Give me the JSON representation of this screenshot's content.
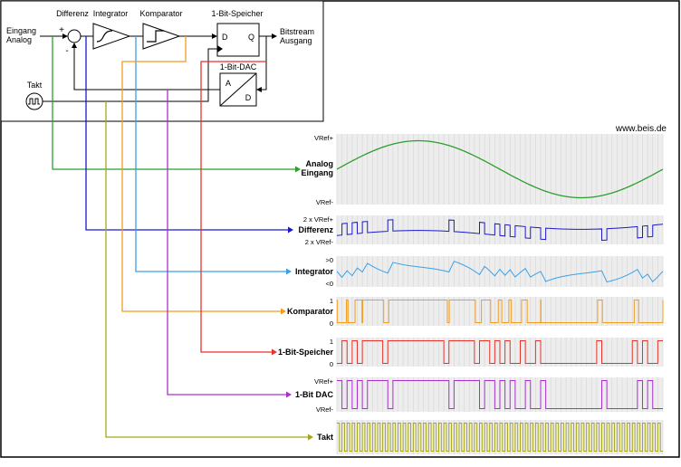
{
  "site": "www.beis.de",
  "diagram": {
    "input_label1": "Eingang",
    "input_label2": "Analog",
    "output_label1": "Bitstream",
    "output_label2": "Ausgang",
    "clock_label": "Takt",
    "label_differenz": "Differenz",
    "label_integrator": "Integrator",
    "label_komparator": "Komparator",
    "label_speicher": "1-Bit-Speicher",
    "label_dac": "1-Bit-DAC",
    "pin_d": "D",
    "pin_q": "Q",
    "pin_a": "A",
    "pin_d2": "D",
    "sign_plus": "+",
    "sign_minus": "-"
  },
  "rows": [
    {
      "id": "analog",
      "name": "Analog",
      "name2": "Eingang",
      "top": "VRef+",
      "bottom": "VRef-",
      "color": "#2e9e2e",
      "type": "sine"
    },
    {
      "id": "differenz",
      "name": "Differenz",
      "top": "2 x VRef+",
      "bottom": "2 x VRef-",
      "color": "#1a1acc",
      "type": "diff"
    },
    {
      "id": "integrator",
      "name": "Integrator",
      "top": ">0",
      "bottom": "<0",
      "color": "#3aa0e8",
      "type": "integrator"
    },
    {
      "id": "komparator",
      "name": "Komparator",
      "top": "1",
      "bottom": "0",
      "color": "#f39c1f",
      "type": "comparator"
    },
    {
      "id": "speicher",
      "name": "1-Bit-Speicher",
      "top": "1",
      "bottom": "0",
      "color": "#e8332a",
      "type": "bitstream"
    },
    {
      "id": "dac",
      "name": "1-Bit DAC",
      "top": "VRef+",
      "bottom": "VRef-",
      "color": "#aa30cc",
      "type": "bitstream-delayed"
    },
    {
      "id": "takt",
      "name": "Takt",
      "top": "",
      "bottom": "",
      "color": "#a6a619",
      "type": "clock"
    }
  ],
  "simulation": {
    "clocks": 64,
    "amplitude": 0.9,
    "bits": "0101011110111111111110111110110101001001000000000001000000101001"
  },
  "plot_style": {
    "bg": "#ededed",
    "grid": "#d8d8d8"
  }
}
